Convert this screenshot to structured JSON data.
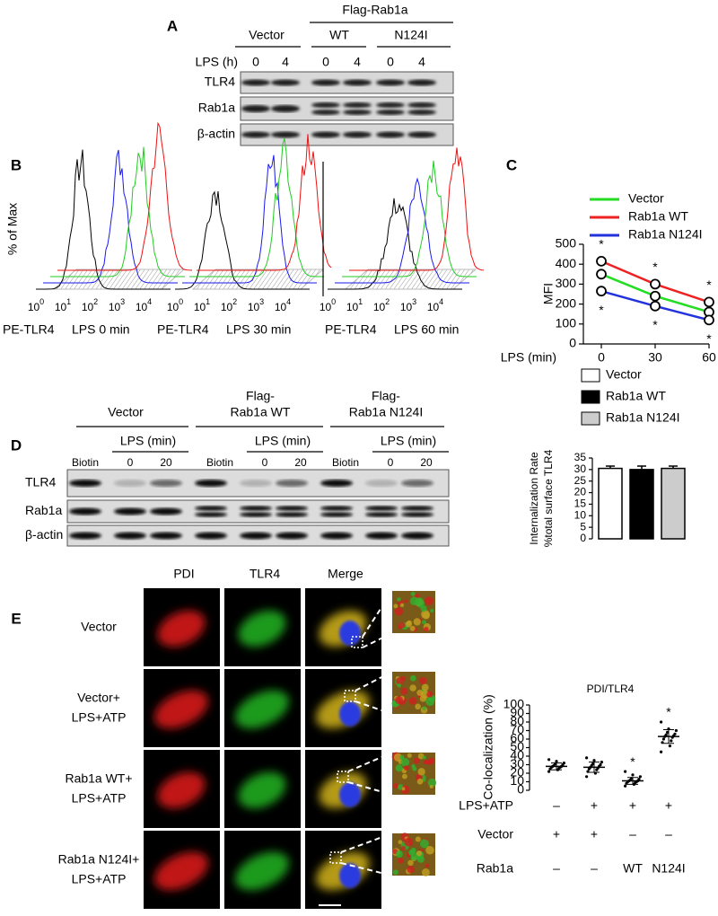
{
  "figure": {
    "panel_a": {
      "label": "A",
      "group_header": "Flag-Rab1a",
      "groups": [
        "Vector",
        "WT",
        "N124I"
      ],
      "row_label": "LPS (h)",
      "lanes": [
        "0",
        "4",
        "0",
        "4",
        "0",
        "4"
      ],
      "blots": [
        "TLR4",
        "Rab1a",
        "β-actin"
      ]
    },
    "panel_b": {
      "label": "B",
      "y_label": "% of Max",
      "tick_base": "10",
      "tick_exponents": [
        "0",
        "1",
        "2",
        "3",
        "4"
      ],
      "plots": [
        {
          "marker": "PE-TLR4",
          "condition": "LPS 0 min"
        },
        {
          "marker": "PE-TLR4",
          "condition": "LPS 30 min"
        },
        {
          "marker": "PE-TLR4",
          "condition": "LPS 60 min"
        }
      ]
    },
    "panel_c": {
      "label": "C"
    },
    "panel_d": {
      "label": "D",
      "groups": [
        [
          "Vector"
        ],
        [
          "Flag-",
          "Rab1a WT"
        ],
        [
          "Flag-",
          "Rab1a N124I"
        ]
      ],
      "sub_header": "LPS (min)",
      "lanes": [
        "Biotin",
        "0",
        "20"
      ],
      "blots": [
        "TLR4",
        "Rab1a",
        "β-actin"
      ]
    },
    "panel_e": {
      "label": "E",
      "columns": [
        "PDI",
        "TLR4",
        "Merge"
      ],
      "rows": [
        [
          "Vector"
        ],
        [
          "Vector+",
          "LPS+ATP"
        ],
        [
          "Rab1a WT+",
          "LPS+ATP"
        ],
        [
          "Rab1a N124I+",
          "LPS+ATP"
        ]
      ]
    }
  },
  "chart_data": [
    {
      "type": "line",
      "x": [
        0,
        30,
        60
      ],
      "xlim": [
        -10,
        60
      ],
      "xticks": [
        0,
        30,
        60
      ],
      "ylim": [
        0,
        500
      ],
      "yticks": [
        0,
        100,
        200,
        300,
        400,
        500
      ],
      "x_label": "LPS (min)",
      "y_label": "MFI",
      "annotation": "*",
      "series": [
        {
          "name": "Vector",
          "color": "#22dd22",
          "values": [
            350,
            240,
            160
          ]
        },
        {
          "name": "Rab1a WT",
          "color": "#ee2222",
          "values": [
            415,
            300,
            210
          ]
        },
        {
          "name": "Rab1a N124I",
          "color": "#2233dd",
          "values": [
            265,
            190,
            120
          ]
        }
      ]
    },
    {
      "type": "bar",
      "categories": [
        "Vector",
        "Rab1a WT",
        "Rab1a N124I"
      ],
      "values": [
        30.5,
        30,
        30.5
      ],
      "errors": [
        1,
        1.5,
        1
      ],
      "colors": [
        "#ffffff",
        "#000000",
        "#cccccc"
      ],
      "ylim": [
        0,
        35
      ],
      "yticks": [
        0,
        5,
        10,
        15,
        20,
        25,
        30,
        35
      ],
      "y_label": [
        "Internalization Rate",
        "%total surface TLR4"
      ]
    },
    {
      "type": "strip",
      "title": "PDI/TLR4",
      "y_label": "Co-localization (%)",
      "ylim": [
        0,
        100
      ],
      "yticks": [
        0,
        10,
        20,
        30,
        40,
        50,
        60,
        70,
        80,
        90,
        100
      ],
      "points": [
        [
          22,
          24,
          25,
          26,
          27,
          27,
          28,
          28,
          29,
          30,
          31,
          32,
          34,
          36
        ],
        [
          16,
          20,
          22,
          24,
          25,
          26,
          27,
          28,
          29,
          30,
          31,
          33,
          35,
          38
        ],
        [
          5,
          7,
          8,
          9,
          10,
          10,
          11,
          11,
          12,
          13,
          14,
          16,
          18,
          22
        ],
        [
          45,
          52,
          56,
          58,
          60,
          62,
          63,
          64,
          65,
          66,
          68,
          70,
          72,
          80
        ]
      ],
      "means": [
        28,
        27,
        11,
        63
      ],
      "sds": [
        4,
        6,
        4,
        8
      ],
      "annotation": "*",
      "significant": [
        false,
        false,
        true,
        true
      ],
      "conditions": [
        {
          "name": "LPS+ATP",
          "values": [
            "–",
            "+",
            "+",
            "+"
          ]
        },
        {
          "name": "Vector",
          "values": [
            "+",
            "+",
            "–",
            "–"
          ]
        },
        {
          "name": "Rab1a",
          "values": [
            "–",
            "–",
            "WT",
            "N124I"
          ]
        }
      ]
    }
  ]
}
